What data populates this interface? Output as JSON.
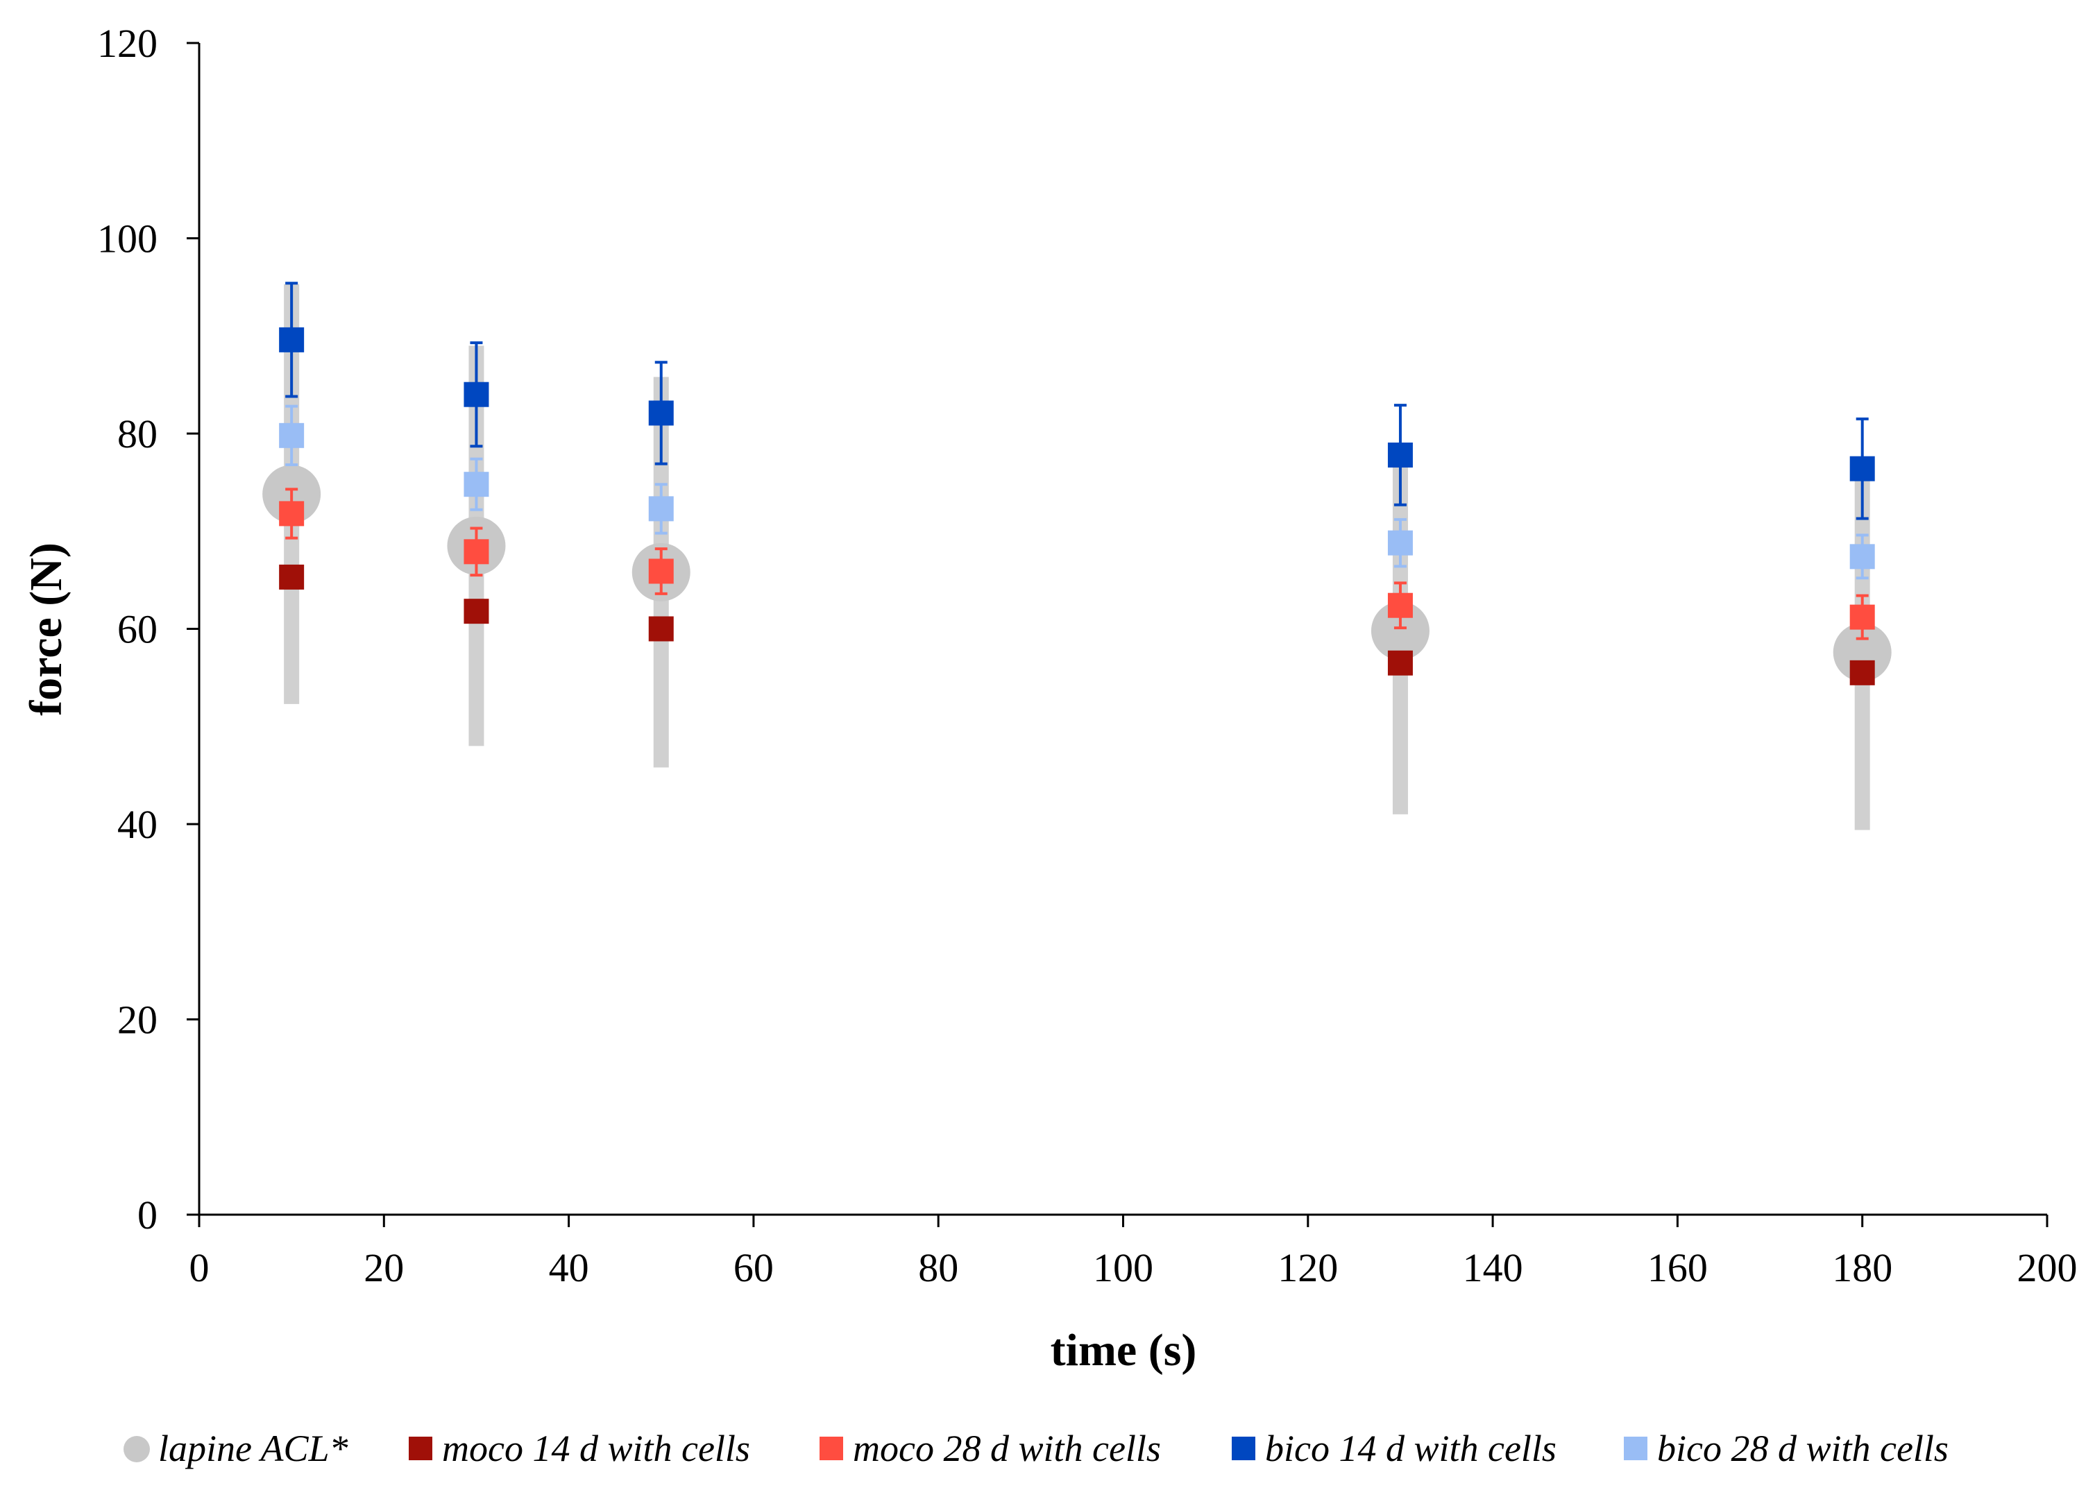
{
  "chart_data": {
    "type": "scatter",
    "title": "",
    "xlabel": "time (s)",
    "ylabel": "force (N)",
    "xlim": [
      0,
      200
    ],
    "ylim": [
      0,
      120
    ],
    "xticks": [
      0,
      20,
      40,
      60,
      80,
      100,
      120,
      140,
      160,
      180,
      200
    ],
    "yticks": [
      0,
      20,
      40,
      60,
      80,
      100,
      120
    ],
    "grid": false,
    "legend_position": "bottom",
    "x": [
      10,
      30,
      50,
      130,
      180
    ],
    "series": [
      {
        "name": "lapine ACL*",
        "marker": "circle",
        "color": "#c8c8c8",
        "values": [
          73.8,
          68.5,
          65.8,
          59.8,
          57.6
        ],
        "errors": [
          21.5,
          20.5,
          20.0,
          18.8,
          18.2
        ]
      },
      {
        "name": "moco 14 d with cells",
        "marker": "square",
        "color": "#a01008",
        "values": [
          65.3,
          61.8,
          60.0,
          56.5,
          55.5
        ],
        "errors": [
          0,
          0,
          0,
          0,
          0
        ]
      },
      {
        "name": "moco 28 d with cells",
        "marker": "square",
        "color": "#ff4d40",
        "values": [
          71.8,
          67.9,
          65.9,
          62.4,
          61.2
        ],
        "errors": [
          2.5,
          2.4,
          2.3,
          2.3,
          2.2
        ]
      },
      {
        "name": "bico 14 d with cells",
        "marker": "square",
        "color": "#0047c0",
        "values": [
          89.6,
          84.0,
          82.1,
          77.8,
          76.4
        ],
        "errors": [
          5.8,
          5.3,
          5.2,
          5.1,
          5.1
        ]
      },
      {
        "name": "bico 28 d with cells",
        "marker": "square",
        "color": "#99bdf5",
        "values": [
          79.8,
          74.8,
          72.3,
          68.8,
          67.4
        ],
        "errors": [
          3.0,
          2.6,
          2.5,
          2.4,
          2.2
        ]
      }
    ]
  }
}
